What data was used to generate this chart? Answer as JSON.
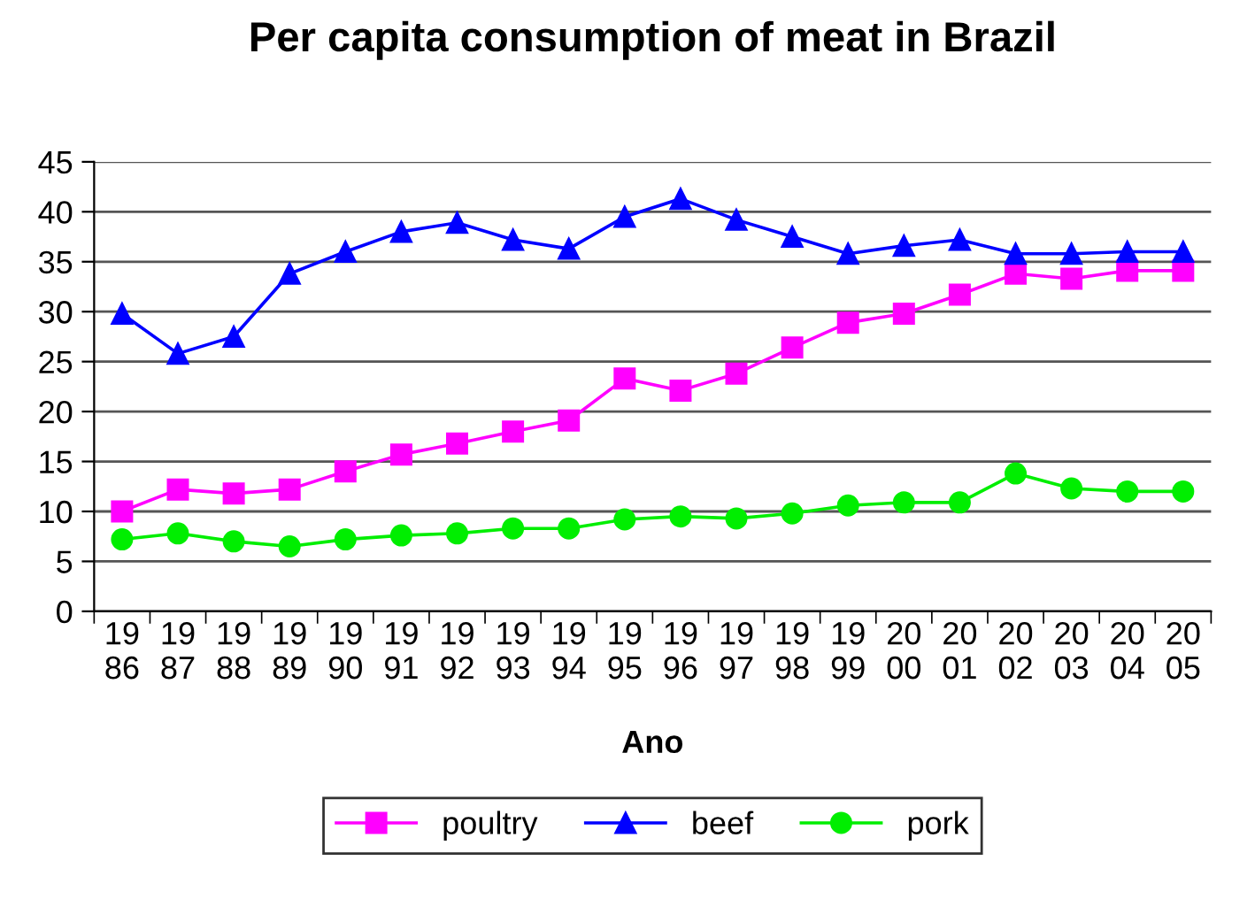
{
  "chart_data": {
    "type": "line",
    "title": "Per capita consumption of meat in Brazil",
    "xlabel": "Ano",
    "categories": [
      "19\n86",
      "19\n87",
      "19\n88",
      "19\n89",
      "19\n90",
      "19\n91",
      "19\n92",
      "19\n93",
      "19\n94",
      "19\n95",
      "19\n96",
      "19\n97",
      "19\n98",
      "19\n99",
      "20\n00",
      "20\n01",
      "20\n02",
      "20\n03",
      "20\n04",
      "20\n05"
    ],
    "series": [
      {
        "name": "poultry",
        "color": "#ff00ff",
        "marker": "square",
        "values": [
          10,
          12.2,
          11.8,
          12.2,
          14,
          15.7,
          16.8,
          18,
          19.1,
          23.3,
          22.1,
          23.8,
          26.4,
          28.9,
          29.8,
          31.7,
          33.8,
          33.3,
          34.1,
          34.1
        ]
      },
      {
        "name": "beef",
        "color": "#0000ff",
        "marker": "triangle",
        "values": [
          29.8,
          25.8,
          27.5,
          33.8,
          36,
          38,
          38.9,
          37.2,
          36.3,
          39.5,
          41.3,
          39.2,
          37.5,
          35.8,
          36.6,
          37.2,
          35.8,
          35.8,
          36,
          36
        ]
      },
      {
        "name": "pork",
        "color": "#00ee00",
        "marker": "circle",
        "values": [
          7.2,
          7.8,
          7,
          6.5,
          7.2,
          7.6,
          7.8,
          8.3,
          8.3,
          9.2,
          9.5,
          9.3,
          9.8,
          10.6,
          10.9,
          10.9,
          13.8,
          12.3,
          12,
          12
        ]
      }
    ],
    "ylim": [
      0,
      45
    ],
    "yticks": [
      0,
      5,
      10,
      15,
      20,
      25,
      30,
      35,
      40,
      45
    ],
    "grid": "y",
    "legend": "bottom",
    "line_style": "solid"
  }
}
